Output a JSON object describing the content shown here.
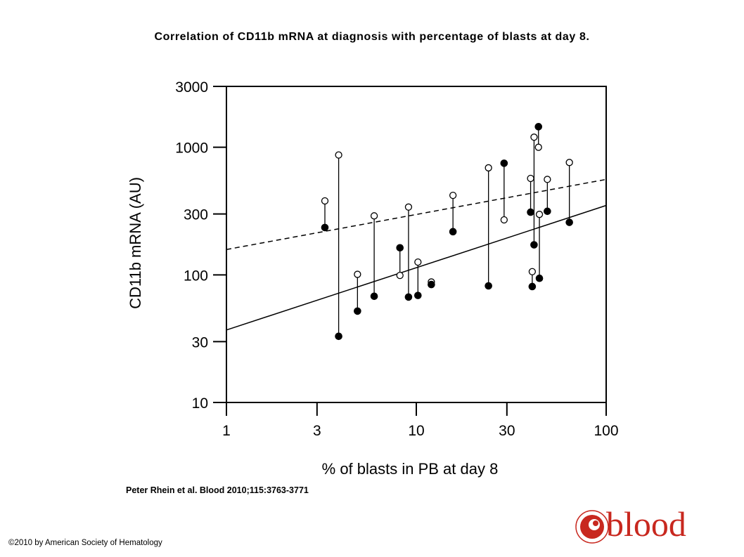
{
  "title": "Correlation of CD11b mRNA at diagnosis with percentage of blasts at day 8.",
  "citation": "Peter Rhein et al. Blood 2010;115:3763-3771",
  "copyright": "©2010 by American Society of Hematology",
  "logo": {
    "word": "blood",
    "color": "#c8281f",
    "icon": "blood-journal-seal-icon"
  },
  "chart_data": {
    "type": "scatter",
    "title": "",
    "xlabel": "% of blasts in PB at day 8",
    "ylabel": "CD11b mRNA (AU)",
    "xscale": "log",
    "yscale": "log",
    "xlim": [
      1,
      100
    ],
    "ylim": [
      10,
      3000
    ],
    "xticks": [
      1,
      3,
      10,
      30,
      100
    ],
    "xtick_labels": [
      "1",
      "3",
      "10",
      "30",
      "100"
    ],
    "yticks": [
      10,
      30,
      100,
      300,
      1000,
      3000
    ],
    "ytick_labels": [
      "10",
      "30",
      "100",
      "300",
      "1000",
      "3000"
    ],
    "grid": false,
    "legend": "none",
    "series": [
      {
        "marker": "filled-circle",
        "points": [
          {
            "x": 3.3,
            "y": 235
          },
          {
            "x": 3.9,
            "y": 33
          },
          {
            "x": 4.9,
            "y": 52
          },
          {
            "x": 6.0,
            "y": 68
          },
          {
            "x": 8.2,
            "y": 163
          },
          {
            "x": 9.1,
            "y": 67
          },
          {
            "x": 10.2,
            "y": 69
          },
          {
            "x": 12.0,
            "y": 84
          },
          {
            "x": 15.6,
            "y": 218
          },
          {
            "x": 24.0,
            "y": 82
          },
          {
            "x": 29.0,
            "y": 750
          },
          {
            "x": 40.0,
            "y": 310
          },
          {
            "x": 40.8,
            "y": 81
          },
          {
            "x": 41.7,
            "y": 172
          },
          {
            "x": 44.0,
            "y": 1450
          },
          {
            "x": 44.5,
            "y": 94
          },
          {
            "x": 49.0,
            "y": 315
          },
          {
            "x": 64.0,
            "y": 258
          }
        ]
      },
      {
        "marker": "open-circle",
        "points": [
          {
            "x": 3.3,
            "y": 380
          },
          {
            "x": 3.9,
            "y": 870
          },
          {
            "x": 4.9,
            "y": 101
          },
          {
            "x": 6.0,
            "y": 290
          },
          {
            "x": 8.2,
            "y": 99
          },
          {
            "x": 9.1,
            "y": 340
          },
          {
            "x": 10.2,
            "y": 126
          },
          {
            "x": 12.0,
            "y": 88
          },
          {
            "x": 15.6,
            "y": 420
          },
          {
            "x": 24.0,
            "y": 690
          },
          {
            "x": 29.0,
            "y": 270
          },
          {
            "x": 40.0,
            "y": 570
          },
          {
            "x": 40.8,
            "y": 106
          },
          {
            "x": 41.7,
            "y": 1200
          },
          {
            "x": 44.0,
            "y": 1000
          },
          {
            "x": 44.5,
            "y": 298
          },
          {
            "x": 49.0,
            "y": 560
          },
          {
            "x": 64.0,
            "y": 760
          }
        ]
      }
    ],
    "pairs": "vertical line connects filled and open marker at same x",
    "fit_lines": [
      {
        "style": "solid",
        "points": [
          [
            1,
            37
          ],
          [
            100,
            350
          ]
        ]
      },
      {
        "style": "dashed",
        "points": [
          [
            1,
            158
          ],
          [
            100,
            560
          ]
        ]
      }
    ],
    "colors": {
      "axis": "#000000",
      "marker": "#000000",
      "background": "#ffffff"
    }
  }
}
